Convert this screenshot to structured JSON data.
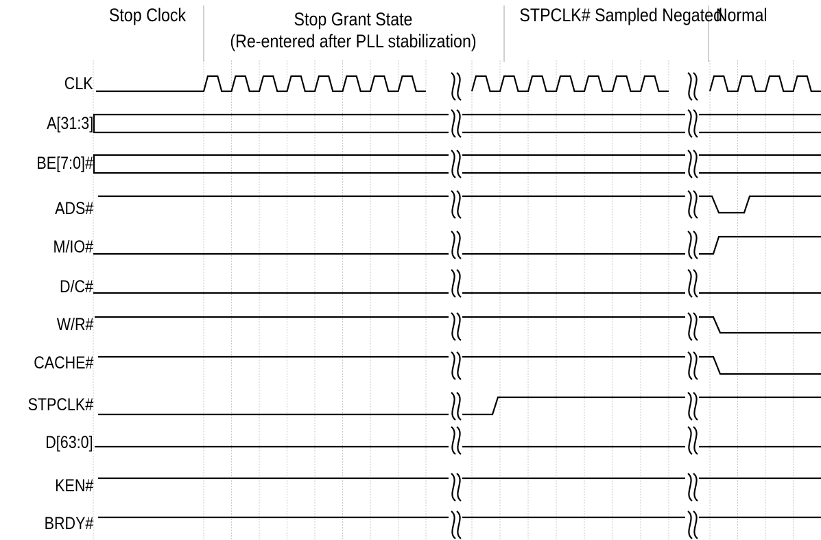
{
  "phases": [
    {
      "label_lines": [
        "Stop Clock"
      ]
    },
    {
      "label_lines": [
        "Stop Grant State",
        "(Re-entered after PLL stabilization)"
      ]
    },
    {
      "label_lines": [
        "STPCLK# Sampled Negated"
      ]
    },
    {
      "label_lines": [
        "Normal"
      ]
    }
  ],
  "signals": [
    {
      "name": "CLK",
      "kind": "clock"
    },
    {
      "name": "A[31:3]",
      "kind": "bus"
    },
    {
      "name": "BE[7:0]#",
      "kind": "bus"
    },
    {
      "name": "ADS#",
      "kind": "high_pulse_low"
    },
    {
      "name": "M/IO#",
      "kind": "low_rise"
    },
    {
      "name": "D/C#",
      "kind": "low"
    },
    {
      "name": "W/R#",
      "kind": "high_fall"
    },
    {
      "name": "CACHE#",
      "kind": "high_fall"
    },
    {
      "name": "STPCLK#",
      "kind": "low_rise_in_phase2"
    },
    {
      "name": "D[63:0]",
      "kind": "low"
    },
    {
      "name": "KEN#",
      "kind": "high"
    },
    {
      "name": "BRDY#",
      "kind": "high"
    }
  ],
  "break_symbol": "§"
}
